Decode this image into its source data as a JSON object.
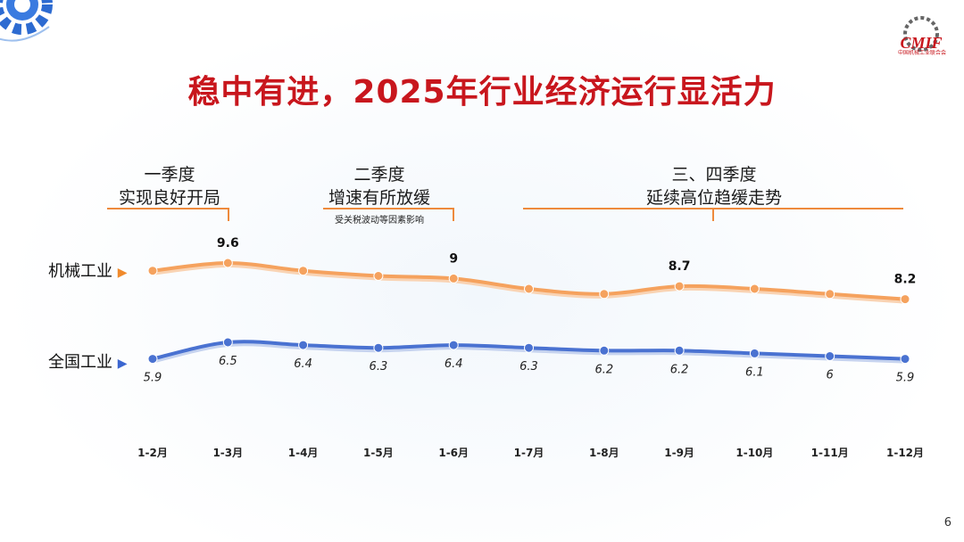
{
  "title": "稳中有进，2025年行业经济运行显活力",
  "page_number": "6",
  "logo": {
    "text": "CMIF",
    "subtitle": "中国机械工业联合会"
  },
  "phases": [
    {
      "line1": "一季度",
      "line2": "实现良好开局",
      "note": ""
    },
    {
      "line1": "二季度",
      "line2": "增速有所放缓",
      "note": "受关税波动等因素影响"
    },
    {
      "line1": "三、四季度",
      "line2": "延续高位趋缓走势",
      "note": ""
    }
  ],
  "colors": {
    "title": "#c8161d",
    "machinery": "#f5a25e",
    "national": "#4a72d1",
    "bracket": "#ee8a3c"
  },
  "chart_data": {
    "type": "line",
    "title": "稳中有进，2025年行业经济运行显活力",
    "categories": [
      "1-2月",
      "1-3月",
      "1-4月",
      "1-5月",
      "1-6月",
      "1-7月",
      "1-8月",
      "1-9月",
      "1-10月",
      "1-11月",
      "1-12月"
    ],
    "series": [
      {
        "name": "机械工业",
        "values": [
          9.3,
          9.6,
          9.3,
          9.1,
          9.0,
          8.6,
          8.4,
          8.7,
          8.6,
          8.4,
          8.2
        ],
        "labels": [
          "",
          "9.6",
          "",
          "",
          "9",
          "",
          "",
          "8.7",
          "",
          "",
          "8.2"
        ]
      },
      {
        "name": "全国工业",
        "values": [
          5.9,
          6.5,
          6.4,
          6.3,
          6.4,
          6.3,
          6.2,
          6.2,
          6.1,
          6.0,
          5.9
        ],
        "labels": [
          "5.9",
          "6.5",
          "6.4",
          "6.3",
          "6.4",
          "6.3",
          "6.2",
          "6.2",
          "6.1",
          "6",
          "5.9"
        ]
      }
    ],
    "xlabel": "",
    "ylabel": "",
    "grid": false
  }
}
